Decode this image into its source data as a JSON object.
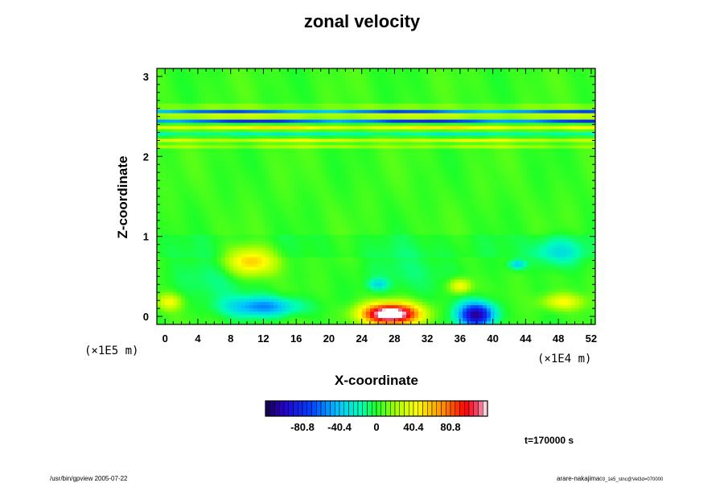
{
  "chart_data": {
    "type": "heatmap",
    "title": "zonal velocity",
    "xlabel": "X-coordinate",
    "ylabel": "Z-coordinate",
    "x_units_note": "(×1E4 m)",
    "z_units_note": "(×1E5 m)",
    "x_ticks": [
      "0",
      "4",
      "8",
      "12",
      "16",
      "20",
      "24",
      "28",
      "32",
      "36",
      "40",
      "44",
      "48",
      "52"
    ],
    "z_ticks": [
      "0",
      "1",
      "2",
      "3"
    ],
    "xlim": [
      -1,
      52.5
    ],
    "zlim": [
      -0.1,
      3.1
    ],
    "colorbar": {
      "min": -121.2,
      "max": 121.2,
      "tick_labels": [
        "-80.8",
        "-40.4",
        "0",
        "40.4",
        "80.8"
      ],
      "tick_values": [
        -80.8,
        -40.4,
        0,
        40.4,
        80.8
      ]
    },
    "features": [
      {
        "x": 27.5,
        "z": 0.03,
        "value": 140,
        "rx": 3.5,
        "rz": 0.13
      },
      {
        "x": 38.0,
        "z": 0.02,
        "value": -115,
        "rx": 2.2,
        "rz": 0.15
      },
      {
        "x": 10.5,
        "z": 0.68,
        "value": 55,
        "rx": 3.0,
        "rz": 0.18
      },
      {
        "x": 36.0,
        "z": 0.38,
        "value": 45,
        "rx": 1.3,
        "rz": 0.09
      },
      {
        "x": 12.0,
        "z": 0.12,
        "value": -58,
        "rx": 4.5,
        "rz": 0.12
      },
      {
        "x": 48.0,
        "z": 0.8,
        "value": -32,
        "rx": 3.0,
        "rz": 0.18
      },
      {
        "x": 48.5,
        "z": 0.18,
        "value": 40,
        "rx": 2.5,
        "rz": 0.1
      },
      {
        "x": 43.0,
        "z": 0.65,
        "value": -42,
        "rx": 1.0,
        "rz": 0.06
      },
      {
        "x": 26.0,
        "z": 0.4,
        "value": -32,
        "rx": 1.2,
        "rz": 0.07
      },
      {
        "x": 0.5,
        "z": 0.18,
        "value": 38,
        "rx": 1.5,
        "rz": 0.1
      },
      {
        "x": 6.0,
        "z": 0.45,
        "value": -15,
        "rx": 5.0,
        "rz": 0.3
      },
      {
        "x": 30.0,
        "z": 0.55,
        "value": -12,
        "rx": 6.0,
        "rz": 0.3
      }
    ],
    "bands": [
      {
        "z": 2.13,
        "value": 22
      },
      {
        "z": 2.19,
        "value": 38
      },
      {
        "z": 2.27,
        "value": -30
      },
      {
        "z": 2.35,
        "value": 52
      },
      {
        "z": 2.45,
        "value": -95
      },
      {
        "z": 2.5,
        "value": 75
      },
      {
        "z": 2.56,
        "value": -60
      },
      {
        "z": 2.62,
        "value": 30
      }
    ]
  },
  "footer": {
    "left": "/usr/bin/gpview 2005-07-22",
    "right": "arare-nakajima",
    "right_sub": "03_1e5_stnc@Vel3d=070000",
    "time": "t=170000 s"
  }
}
